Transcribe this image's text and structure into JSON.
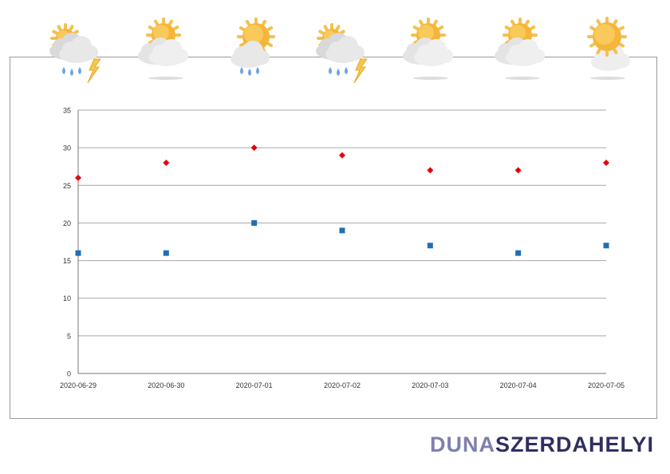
{
  "chart_data": {
    "type": "scatter",
    "categories": [
      "2020-06-29",
      "2020-06-30",
      "2020-07-01",
      "2020-07-02",
      "2020-07-03",
      "2020-07-04",
      "2020-07-05"
    ],
    "series": [
      {
        "values": [
          26,
          28,
          30,
          29,
          27,
          27,
          28
        ],
        "color": "#e8000b",
        "marker": "diamond"
      },
      {
        "values": [
          16,
          16,
          20,
          19,
          17,
          16,
          17
        ],
        "color": "#1f6fb5",
        "marker": "square"
      }
    ],
    "ylim": [
      0,
      35
    ],
    "yticks": [
      0,
      5,
      10,
      15,
      20,
      25,
      30,
      35
    ],
    "grid": true,
    "weather_icons": [
      "storm-rain-icon",
      "partly-cloudy-icon",
      "rain-sun-icon",
      "storm-rain-icon",
      "partly-cloudy-icon",
      "partly-cloudy-icon",
      "mostly-sunny-icon"
    ]
  },
  "logo": {
    "part1": "DUNA",
    "part2": "SZERDAHELYI"
  }
}
